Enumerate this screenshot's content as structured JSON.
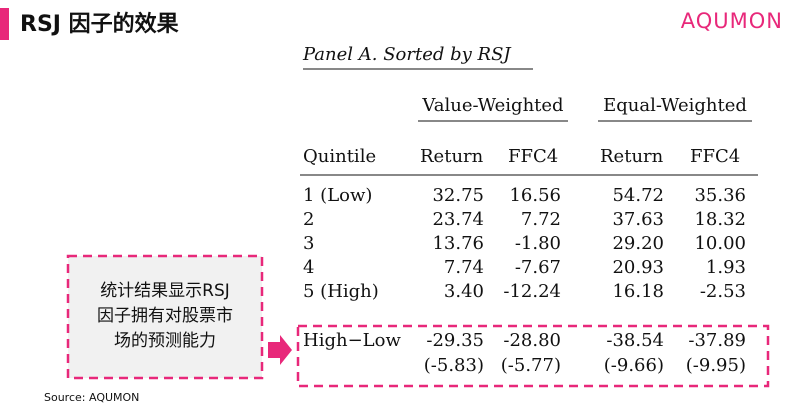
{
  "header": {
    "title": "RSJ 因子的效果",
    "logo": "AQUMON"
  },
  "table": {
    "panel_title": "Panel A. Sorted by RSJ",
    "groups": [
      "Value-Weighted",
      "Equal-Weighted"
    ],
    "columns": [
      "Quintile",
      "Return",
      "FFC4",
      "Return",
      "FFC4"
    ],
    "rows": [
      [
        "1 (Low)",
        "32.75",
        "16.56",
        "54.72",
        "35.36"
      ],
      [
        "2",
        "23.74",
        "7.72",
        "37.63",
        "18.32"
      ],
      [
        "3",
        "13.76",
        "-1.80",
        "29.20",
        "10.00"
      ],
      [
        "4",
        "7.74",
        "-7.67",
        "20.93",
        "1.93"
      ],
      [
        "5 (High)",
        "3.40",
        "-12.24",
        "16.18",
        "-2.53"
      ],
      [
        "High−Low",
        "-29.35",
        "-28.80",
        "-38.54",
        "-37.89"
      ],
      [
        "",
        "(-5.83)",
        "(-5.77)",
        "(-9.66)",
        "(-9.95)"
      ]
    ]
  },
  "callout": {
    "lines": [
      "统计结果显示RSJ",
      "因子拥有对股票市",
      "场的预测能力"
    ]
  },
  "source": "Source: AQUMON"
}
